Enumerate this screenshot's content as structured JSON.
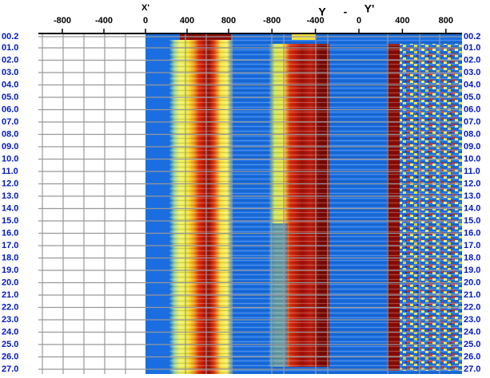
{
  "x_section": {
    "label": "X'",
    "ticks": [
      -800,
      -400,
      0,
      400,
      800
    ]
  },
  "y_section": {
    "label_left": "Y",
    "label_dash": "-",
    "label_right": "Y'",
    "ticks": [
      -800,
      -400,
      0,
      400,
      800
    ]
  },
  "rows": [
    "00.2",
    "01.0",
    "02.0",
    "03.0",
    "04.0",
    "05.0",
    "06.0",
    "07.0",
    "08.0",
    "09.0",
    "10.0",
    "11.0",
    "12.0",
    "13.0",
    "14.0",
    "15.0",
    "16.0",
    "17.0",
    "18.0",
    "19.0",
    "20.0",
    "21.0",
    "22.0",
    "23.0",
    "24.0",
    "25.0",
    "26.0",
    "27.0"
  ]
}
